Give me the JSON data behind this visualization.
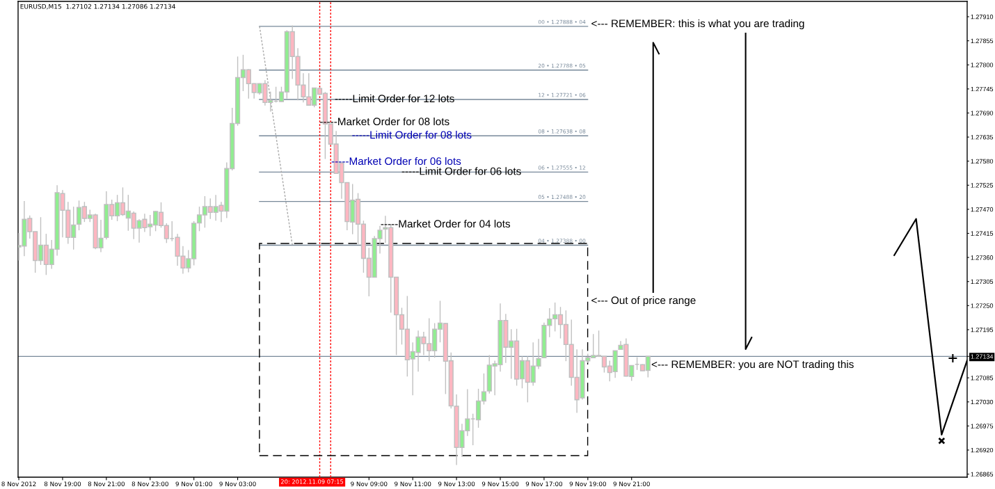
{
  "chart_data": {
    "type": "candlestick",
    "title": "EURUSD,M15  1.27102 1.27134 1.27086 1.27134",
    "x": [
      "2012-11-08T17:00",
      "2012-11-08T17:15",
      "2012-11-08T17:30",
      "2012-11-08T17:45",
      "2012-11-08T18:00",
      "2012-11-08T18:15",
      "2012-11-08T18:30",
      "2012-11-08T18:45",
      "2012-11-08T19:00",
      "2012-11-08T19:15",
      "2012-11-08T19:30",
      "2012-11-08T19:45",
      "2012-11-08T20:00",
      "2012-11-08T20:15",
      "2012-11-08T20:30",
      "2012-11-08T20:45",
      "2012-11-08T21:00",
      "2012-11-08T21:15",
      "2012-11-08T21:30",
      "2012-11-08T21:45",
      "2012-11-08T22:00",
      "2012-11-08T22:15",
      "2012-11-08T22:30",
      "2012-11-08T22:45",
      "2012-11-08T23:00",
      "2012-11-08T23:15",
      "2012-11-08T23:30",
      "2012-11-08T23:45",
      "2012-11-09T00:00",
      "2012-11-09T00:15",
      "2012-11-09T00:30",
      "2012-11-09T00:45",
      "2012-11-09T01:00",
      "2012-11-09T01:15",
      "2012-11-09T01:30",
      "2012-11-09T01:45",
      "2012-11-09T02:00",
      "2012-11-09T02:15",
      "2012-11-09T02:30",
      "2012-11-09T02:45",
      "2012-11-09T03:00",
      "2012-11-09T03:15",
      "2012-11-09T03:30",
      "2012-11-09T03:45",
      "2012-11-09T04:00",
      "2012-11-09T04:15",
      "2012-11-09T04:30",
      "2012-11-09T04:45",
      "2012-11-09T05:00",
      "2012-11-09T05:15",
      "2012-11-09T05:30",
      "2012-11-09T05:45",
      "2012-11-09T06:00",
      "2012-11-09T06:15",
      "2012-11-09T06:30",
      "2012-11-09T06:45",
      "2012-11-09T07:00",
      "2012-11-09T07:15",
      "2012-11-09T07:30",
      "2012-11-09T07:45",
      "2012-11-09T08:00",
      "2012-11-09T08:15",
      "2012-11-09T08:30",
      "2012-11-09T08:45",
      "2012-11-09T09:00",
      "2012-11-09T09:15",
      "2012-11-09T09:30",
      "2012-11-09T09:45",
      "2012-11-09T10:00",
      "2012-11-09T10:15",
      "2012-11-09T10:30",
      "2012-11-09T10:45",
      "2012-11-09T11:00",
      "2012-11-09T11:15",
      "2012-11-09T11:30",
      "2012-11-09T11:45",
      "2012-11-09T12:00",
      "2012-11-09T12:15",
      "2012-11-09T12:30",
      "2012-11-09T12:45",
      "2012-11-09T13:00",
      "2012-11-09T13:15",
      "2012-11-09T13:30",
      "2012-11-09T13:45",
      "2012-11-09T14:00",
      "2012-11-09T14:15",
      "2012-11-09T14:30",
      "2012-11-09T14:45",
      "2012-11-09T15:00",
      "2012-11-09T15:15",
      "2012-11-09T15:30",
      "2012-11-09T15:45",
      "2012-11-09T16:00",
      "2012-11-09T16:15",
      "2012-11-09T16:30",
      "2012-11-09T16:45",
      "2012-11-09T17:00",
      "2012-11-09T17:15",
      "2012-11-09T17:30",
      "2012-11-09T17:45",
      "2012-11-09T18:00",
      "2012-11-09T18:15",
      "2012-11-09T18:30",
      "2012-11-09T18:45",
      "2012-11-09T19:00",
      "2012-11-09T19:15",
      "2012-11-09T19:30",
      "2012-11-09T19:45",
      "2012-11-09T20:00",
      "2012-11-09T20:15",
      "2012-11-09T20:30",
      "2012-11-09T20:45",
      "2012-11-09T21:00",
      "2012-11-09T21:15",
      "2012-11-09T21:30",
      "2012-11-09T21:45"
    ],
    "ohlc": [
      [
        1.27384,
        1.27416,
        1.27353,
        1.27387
      ],
      [
        1.27386,
        1.27489,
        1.27363,
        1.27447
      ],
      [
        1.27449,
        1.27456,
        1.27403,
        1.27419
      ],
      [
        1.27419,
        1.27419,
        1.27325,
        1.27353
      ],
      [
        1.27353,
        1.27452,
        1.27343,
        1.27388
      ],
      [
        1.27388,
        1.27414,
        1.2732,
        1.27344
      ],
      [
        1.27344,
        1.274,
        1.27334,
        1.27379
      ],
      [
        1.27379,
        1.27525,
        1.27364,
        1.27508
      ],
      [
        1.27506,
        1.27514,
        1.27406,
        1.27468
      ],
      [
        1.27468,
        1.27487,
        1.27391,
        1.27406
      ],
      [
        1.27406,
        1.27476,
        1.27378,
        1.27434
      ],
      [
        1.27436,
        1.2749,
        1.27422,
        1.27474
      ],
      [
        1.27476,
        1.27487,
        1.27441,
        1.27449
      ],
      [
        1.27449,
        1.27469,
        1.27441,
        1.27457
      ],
      [
        1.27457,
        1.2746,
        1.27379,
        1.27382
      ],
      [
        1.27382,
        1.27446,
        1.27372,
        1.27404
      ],
      [
        1.27406,
        1.27511,
        1.27401,
        1.27481
      ],
      [
        1.27481,
        1.27492,
        1.27446,
        1.27455
      ],
      [
        1.27455,
        1.27503,
        1.27443,
        1.27485
      ],
      [
        1.27485,
        1.2752,
        1.27455,
        1.27458
      ],
      [
        1.2745,
        1.27503,
        1.27421,
        1.27466
      ],
      [
        1.27461,
        1.27465,
        1.27402,
        1.27427
      ],
      [
        1.27427,
        1.27447,
        1.27394,
        1.27444
      ],
      [
        1.27447,
        1.2746,
        1.27418,
        1.27428
      ],
      [
        1.2743,
        1.27457,
        1.27409,
        1.27436
      ],
      [
        1.27434,
        1.27466,
        1.2742,
        1.27465
      ],
      [
        1.27463,
        1.27486,
        1.27428,
        1.27433
      ],
      [
        1.27433,
        1.27438,
        1.27393,
        1.27403
      ],
      [
        1.27403,
        1.27443,
        1.27397,
        1.27403
      ],
      [
        1.27406,
        1.27414,
        1.27341,
        1.27363
      ],
      [
        1.27363,
        1.27386,
        1.27323,
        1.27336
      ],
      [
        1.27336,
        1.27377,
        1.27326,
        1.27357
      ],
      [
        1.27357,
        1.27443,
        1.27342,
        1.27438
      ],
      [
        1.27439,
        1.27476,
        1.2742,
        1.27457
      ],
      [
        1.27457,
        1.275,
        1.27428,
        1.27476
      ],
      [
        1.27476,
        1.27495,
        1.27448,
        1.27463
      ],
      [
        1.27463,
        1.27503,
        1.27444,
        1.27476
      ],
      [
        1.27479,
        1.27487,
        1.27441,
        1.27466
      ],
      [
        1.27466,
        1.27577,
        1.2745,
        1.27563
      ],
      [
        1.27563,
        1.27702,
        1.27559,
        1.27666
      ],
      [
        1.27666,
        1.27819,
        1.27661,
        1.27771
      ],
      [
        1.27771,
        1.27823,
        1.2774,
        1.27789
      ],
      [
        1.27789,
        1.2779,
        1.27723,
        1.27757
      ],
      [
        1.27757,
        1.27758,
        1.27723,
        1.27737
      ],
      [
        1.27736,
        1.27758,
        1.27732,
        1.27757
      ],
      [
        1.27757,
        1.27765,
        1.27707,
        1.27714
      ],
      [
        1.27714,
        1.27739,
        1.27693,
        1.27719
      ],
      [
        1.27717,
        1.2775,
        1.27714,
        1.27717
      ],
      [
        1.27716,
        1.2775,
        1.27716,
        1.27738
      ],
      [
        1.27738,
        1.27879,
        1.27723,
        1.27876
      ],
      [
        1.27876,
        1.2789,
        1.27768,
        1.27819
      ],
      [
        1.27819,
        1.27838,
        1.27719,
        1.27754
      ],
      [
        1.27754,
        1.27781,
        1.27714,
        1.27727
      ],
      [
        1.27727,
        1.27781,
        1.27708,
        1.27708
      ],
      [
        1.27708,
        1.27747,
        1.27703,
        1.27747
      ],
      [
        1.27746,
        1.27749,
        1.27731,
        1.27733
      ],
      [
        1.27735,
        1.27738,
        1.27585,
        1.27665
      ],
      [
        1.27665,
        1.27665,
        1.27619,
        1.27619
      ],
      [
        1.27619,
        1.27649,
        1.27552,
        1.27552
      ],
      [
        1.27576,
        1.27576,
        1.27494,
        1.27531
      ],
      [
        1.27531,
        1.27531,
        1.27422,
        1.27442
      ],
      [
        1.27441,
        1.27528,
        1.27413,
        1.27491
      ],
      [
        1.27493,
        1.27507,
        1.2739,
        1.27436
      ],
      [
        1.27436,
        1.27444,
        1.27325,
        1.27358
      ],
      [
        1.27358,
        1.27382,
        1.27271,
        1.27315
      ],
      [
        1.27315,
        1.27409,
        1.27315,
        1.27403
      ],
      [
        1.27403,
        1.27432,
        1.27369,
        1.27422
      ],
      [
        1.27425,
        1.27455,
        1.27393,
        1.27428
      ],
      [
        1.27428,
        1.27436,
        1.27234,
        1.27315
      ],
      [
        1.27315,
        1.27315,
        1.27137,
        1.27229
      ],
      [
        1.27229,
        1.27245,
        1.27161,
        1.27196
      ],
      [
        1.27196,
        1.27272,
        1.27088,
        1.27126
      ],
      [
        1.27128,
        1.27166,
        1.27045,
        1.27145
      ],
      [
        1.27143,
        1.27193,
        1.27099,
        1.27178
      ],
      [
        1.27178,
        1.2719,
        1.27137,
        1.27163
      ],
      [
        1.27163,
        1.27221,
        1.27123,
        1.27147
      ],
      [
        1.27147,
        1.2721,
        1.27131,
        1.27196
      ],
      [
        1.27196,
        1.27261,
        1.27166,
        1.2721
      ],
      [
        1.27209,
        1.2721,
        1.27048,
        1.27123
      ],
      [
        1.27124,
        1.27143,
        1.27015,
        1.27021
      ],
      [
        1.2702,
        1.27047,
        1.26886,
        1.26926
      ],
      [
        1.26926,
        1.2698,
        1.26904,
        1.26964
      ],
      [
        1.26964,
        1.27059,
        1.26952,
        1.26991
      ],
      [
        1.26991,
        1.27003,
        1.26931,
        1.26991
      ],
      [
        1.26989,
        1.2706,
        1.26971,
        1.27032
      ],
      [
        1.27032,
        1.27095,
        1.27024,
        1.27053
      ],
      [
        1.27055,
        1.27137,
        1.27049,
        1.27114
      ],
      [
        1.27112,
        1.27124,
        1.27045,
        1.27117
      ],
      [
        1.27115,
        1.27255,
        1.27099,
        1.27216
      ],
      [
        1.27216,
        1.27231,
        1.27119,
        1.27155
      ],
      [
        1.27155,
        1.27196,
        1.27083,
        1.27169
      ],
      [
        1.27169,
        1.27197,
        1.27067,
        1.27082
      ],
      [
        1.27083,
        1.27134,
        1.27061,
        1.27124
      ],
      [
        1.27124,
        1.27134,
        1.27029,
        1.27075
      ],
      [
        1.27075,
        1.27166,
        1.27067,
        1.27112
      ],
      [
        1.27112,
        1.27174,
        1.27105,
        1.27129
      ],
      [
        1.27131,
        1.27211,
        1.27131,
        1.27205
      ],
      [
        1.27205,
        1.27244,
        1.27178,
        1.27219
      ],
      [
        1.2722,
        1.27257,
        1.27191,
        1.27229
      ],
      [
        1.27229,
        1.27247,
        1.27175,
        1.27207
      ],
      [
        1.27207,
        1.27239,
        1.27123,
        1.27161
      ],
      [
        1.27161,
        1.27218,
        1.27067,
        1.27086
      ],
      [
        1.27086,
        1.2715,
        1.27005,
        1.27035
      ],
      [
        1.27039,
        1.2715,
        1.27035,
        1.27124
      ],
      [
        1.27124,
        1.2714,
        1.27119,
        1.27131
      ],
      [
        1.27131,
        1.27185,
        1.27131,
        1.27136
      ],
      [
        1.27134,
        1.27193,
        1.27134,
        1.27136
      ],
      [
        1.27134,
        1.27134,
        1.27097,
        1.2711
      ],
      [
        1.27112,
        1.27124,
        1.27077,
        1.27097
      ],
      [
        1.27099,
        1.27147,
        1.27085,
        1.27147
      ],
      [
        1.2715,
        1.27169,
        1.2715,
        1.27159
      ],
      [
        1.27161,
        1.27175,
        1.27088,
        1.27089
      ],
      [
        1.27088,
        1.27113,
        1.27078,
        1.27113
      ],
      [
        1.27116,
        1.27132,
        1.27103,
        1.27116
      ],
      [
        1.27115,
        1.27116,
        1.27101,
        1.27101
      ],
      [
        1.27102,
        1.27134,
        1.27086,
        1.27134
      ]
    ],
    "color": "#c0c0c0",
    "colors": [
      "#90ee90",
      "#90ee90",
      "#ffb6c1",
      "#ffb6c1",
      "#90ee90",
      "#ffb6c1",
      "#90ee90",
      "#90ee90",
      "#ffb6c1",
      "#ffb6c1",
      "#90ee90",
      "#90ee90",
      "#ffb6c1",
      "#90ee90",
      "#ffb6c1",
      "#90ee90",
      "#90ee90",
      "#ffb6c1",
      "#90ee90",
      "#ffb6c1",
      "#90ee90",
      "#ffb6c1",
      "#90ee90",
      "#ffb6c1",
      "#90ee90",
      "#90ee90",
      "#ffb6c1",
      "#ffb6c1",
      "#c0c0c0",
      "#ffb6c1",
      "#ffb6c1",
      "#90ee90",
      "#90ee90",
      "#90ee90",
      "#90ee90",
      "#ffb6c1",
      "#90ee90",
      "#ffb6c1",
      "#90ee90",
      "#90ee90",
      "#90ee90",
      "#90ee90",
      "#ffb6c1",
      "#ffb6c1",
      "#90ee90",
      "#ffb6c1",
      "#90ee90",
      "#c0c0c0",
      "#90ee90",
      "#90ee90",
      "#ffb6c1",
      "#ffb6c1",
      "#ffb6c1",
      "#ffb6c1",
      "#90ee90",
      "#ffb6c1",
      "#ffb6c1",
      "#ffb6c1",
      "#ffb6c1",
      "#ffb6c1",
      "#ffb6c1",
      "#90ee90",
      "#ffb6c1",
      "#ffb6c1",
      "#ffb6c1",
      "#90ee90",
      "#90ee90",
      "#90ee90",
      "#ffb6c1",
      "#ffb6c1",
      "#ffb6c1",
      "#ffb6c1",
      "#90ee90",
      "#90ee90",
      "#ffb6c1",
      "#ffb6c1",
      "#90ee90",
      "#90ee90",
      "#ffb6c1",
      "#ffb6c1",
      "#ffb6c1",
      "#90ee90",
      "#90ee90",
      "#c0c0c0",
      "#90ee90",
      "#90ee90",
      "#90ee90",
      "#90ee90",
      "#90ee90",
      "#ffb6c1",
      "#90ee90",
      "#ffb6c1",
      "#90ee90",
      "#ffb6c1",
      "#90ee90",
      "#90ee90",
      "#90ee90",
      "#90ee90",
      "#90ee90",
      "#ffb6c1",
      "#ffb6c1",
      "#ffb6c1",
      "#ffb6c1",
      "#90ee90",
      "#90ee90",
      "#90ee90",
      "#90ee90",
      "#ffb6c1",
      "#ffb6c1",
      "#90ee90",
      "#90ee90",
      "#ffb6c1",
      "#90ee90",
      "#c0c0c0",
      "#ffb6c1",
      "#90ee90"
    ],
    "series": [
      {
        "type": "line",
        "x": [
          "2012-11-09T04:00",
          "2012-11-09T05:30"
        ],
        "values": [
          1.27888,
          1.27388
        ],
        "color": "#a9a9a9",
        "line_style": "dotted"
      },
      {
        "type": "line",
        "x": [
          "2012-11-10T09:00",
          "2012-11-10T10:00",
          "2012-11-10T11:10",
          "2012-11-10T12:20"
        ],
        "values": [
          1.27365,
          1.27448,
          1.26955,
          1.27125
        ],
        "color": "#000000"
      },
      {
        "type": "scatter",
        "x": [
          "2012-11-10T11:10"
        ],
        "values": [
          1.26941
        ],
        "color": "#000000",
        "marker": "cross"
      }
    ],
    "xlim": [
      "2012-11-08T16:58",
      "2012-11-10T12:20"
    ],
    "xticks": [
      {
        "value": "2012-11-08T17:00",
        "label": "8 Nov 2012"
      },
      {
        "value": "2012-11-08T19:00",
        "label": "8 Nov 19:00"
      },
      {
        "value": "2012-11-08T21:00",
        "label": "8 Nov 21:00"
      },
      {
        "value": "2012-11-08T23:00",
        "label": "8 Nov 23:00"
      },
      {
        "value": "2012-11-09T01:00",
        "label": "9 Nov 01:00"
      },
      {
        "value": "2012-11-09T03:00",
        "label": "9 Nov 03:00"
      },
      {
        "value": "2012-11-09T09:00",
        "label": "9 Nov 09:00"
      },
      {
        "value": "2012-11-09T11:00",
        "label": "9 Nov 11:00"
      },
      {
        "value": "2012-11-09T13:00",
        "label": "9 Nov 13:00"
      },
      {
        "value": "2012-11-09T15:00",
        "label": "9 Nov 15:00"
      },
      {
        "value": "2012-11-09T17:00",
        "label": "9 Nov 17:00"
      },
      {
        "value": "2012-11-09T19:00",
        "label": "9 Nov 19:00"
      },
      {
        "value": "2012-11-09T21:00",
        "label": "9 Nov 21:00"
      }
    ],
    "ylim": [
      1.26858,
      1.27945
    ],
    "yticks": [
      {
        "value": 1.2791,
        "label": "1.27910"
      },
      1.27855,
      {
        "value": 1.278,
        "label": "1.27800"
      },
      1.27745,
      {
        "value": 1.2769,
        "label": "1.27690"
      },
      1.27635,
      {
        "value": 1.2758,
        "label": "1.27580"
      },
      1.27525,
      {
        "value": 1.2747,
        "label": "1.27470"
      },
      1.27415,
      {
        "value": 1.2736,
        "label": "1.27360"
      },
      1.27305,
      {
        "value": 1.2725,
        "label": "1.27250"
      },
      1.27195,
      1.27134,
      1.27085,
      {
        "value": 1.2703,
        "label": "1.27030"
      },
      1.26975,
      {
        "value": 1.2692,
        "label": "1.26920"
      },
      1.26865
    ],
    "ref_lines": [
      {
        "axis": "y",
        "value": 1.27888,
        "label": "00 • 1.27888 • 04",
        "color": "#778899"
      },
      {
        "axis": "y",
        "value": 1.27788,
        "label": "20 • 1.27788 • 05",
        "color": "#778899"
      },
      {
        "axis": "y",
        "value": 1.27721,
        "label": "12 • 1.27721 • 06",
        "color": "#778899"
      },
      {
        "axis": "y",
        "value": 1.27638,
        "label": "08 • 1.27638 • 08",
        "color": "#778899"
      },
      {
        "axis": "y",
        "value": 1.27555,
        "label": "06 • 1.27555 • 12",
        "color": "#778899"
      },
      {
        "axis": "y",
        "value": 1.27488,
        "label": "05 • 1.27488 • 20",
        "color": "#778899"
      },
      {
        "axis": "y",
        "value": 1.27388,
        "label": "04 • 1.27388 • 00",
        "color": "#778899"
      },
      {
        "axis": "y",
        "value": 1.27134,
        "color": "#778899"
      },
      {
        "axis": "x",
        "value": "2012-11-09T06:45",
        "color": "#ff0000",
        "line_style": "dotted"
      },
      {
        "axis": "x",
        "value": "2012-11-09T07:15",
        "color": "#ff0000",
        "line_style": "dotted"
      }
    ],
    "annotations": [
      {
        "text": "-----Limit Order for 12 lots",
        "x": "2012-11-09T07:26",
        "y": 1.27721
      },
      "-----Market Order for 08 lots",
      {
        "text": "-----Limit Order for 08 lots",
        "x": "2012-11-09T08:13",
        "y": 1.27638
      },
      "-----Market Order for 06 lots",
      {
        "text": "-----Limit Order for 06 lots",
        "x": "2012-11-09T10:29",
        "y": 1.27555
      },
      "-----Market Order for 04 lots",
      "<--- REMEMBER: this is what you are trading",
      "<--- Out of price range",
      "<--- REMEMBER: you are NOT trading this",
      "20: 2012.11.09 07:15"
    ]
  }
}
